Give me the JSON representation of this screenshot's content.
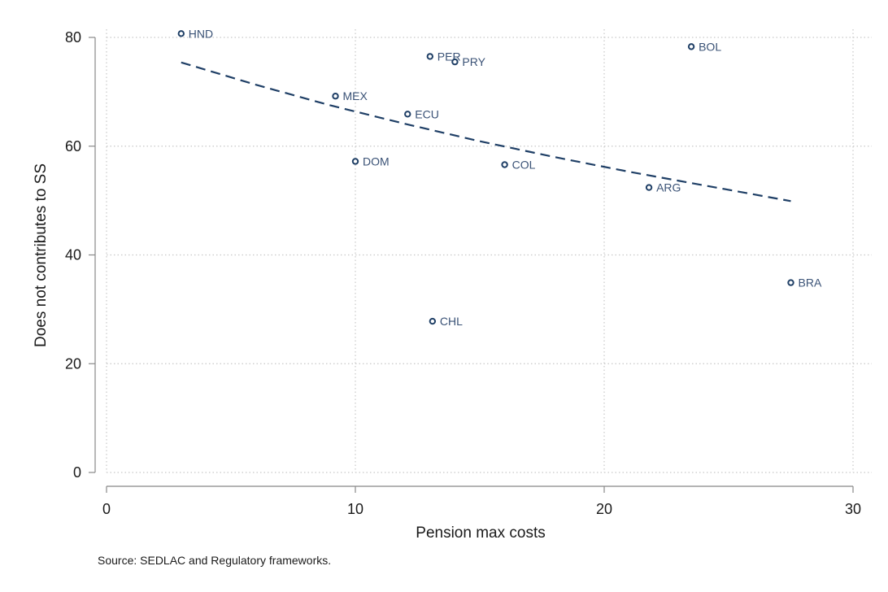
{
  "chart_data": {
    "type": "scatter",
    "xlabel": "Pension max costs",
    "ylabel": "Does not contributes to SS",
    "xlim": [
      0,
      30
    ],
    "ylim": [
      0,
      80
    ],
    "xticks": [
      "0",
      "10",
      "20",
      "30"
    ],
    "yticks": [
      "0",
      "20",
      "40",
      "60",
      "80"
    ],
    "grid": "dotted, major ticks",
    "marker": "hollow circle",
    "colors": {
      "series": "#1f3f66",
      "label": "#3a5276",
      "grid": "#c8c8c8",
      "axis": "#888888"
    },
    "points": [
      {
        "label": "HND",
        "x": 3.0,
        "y": 80.7
      },
      {
        "label": "PER",
        "x": 13.0,
        "y": 76.5
      },
      {
        "label": "PRY",
        "x": 14.0,
        "y": 75.5
      },
      {
        "label": "BOL",
        "x": 23.5,
        "y": 78.3
      },
      {
        "label": "MEX",
        "x": 9.2,
        "y": 69.2
      },
      {
        "label": "ECU",
        "x": 12.1,
        "y": 65.9
      },
      {
        "label": "DOM",
        "x": 10.0,
        "y": 57.2
      },
      {
        "label": "COL",
        "x": 16.0,
        "y": 56.6
      },
      {
        "label": "ARG",
        "x": 21.8,
        "y": 52.4
      },
      {
        "label": "BRA",
        "x": 27.5,
        "y": 34.9
      },
      {
        "label": "CHL",
        "x": 13.1,
        "y": 27.8
      }
    ],
    "fit_line": {
      "style": "dashed",
      "x": [
        3,
        6,
        9,
        12,
        15,
        18,
        21,
        24,
        27.5
      ],
      "y": [
        75.4,
        71.3,
        67.5,
        64.1,
        60.9,
        58.0,
        55.3,
        52.8,
        49.9
      ]
    }
  },
  "footer": {
    "source": "Source: SEDLAC and Regulatory frameworks."
  }
}
